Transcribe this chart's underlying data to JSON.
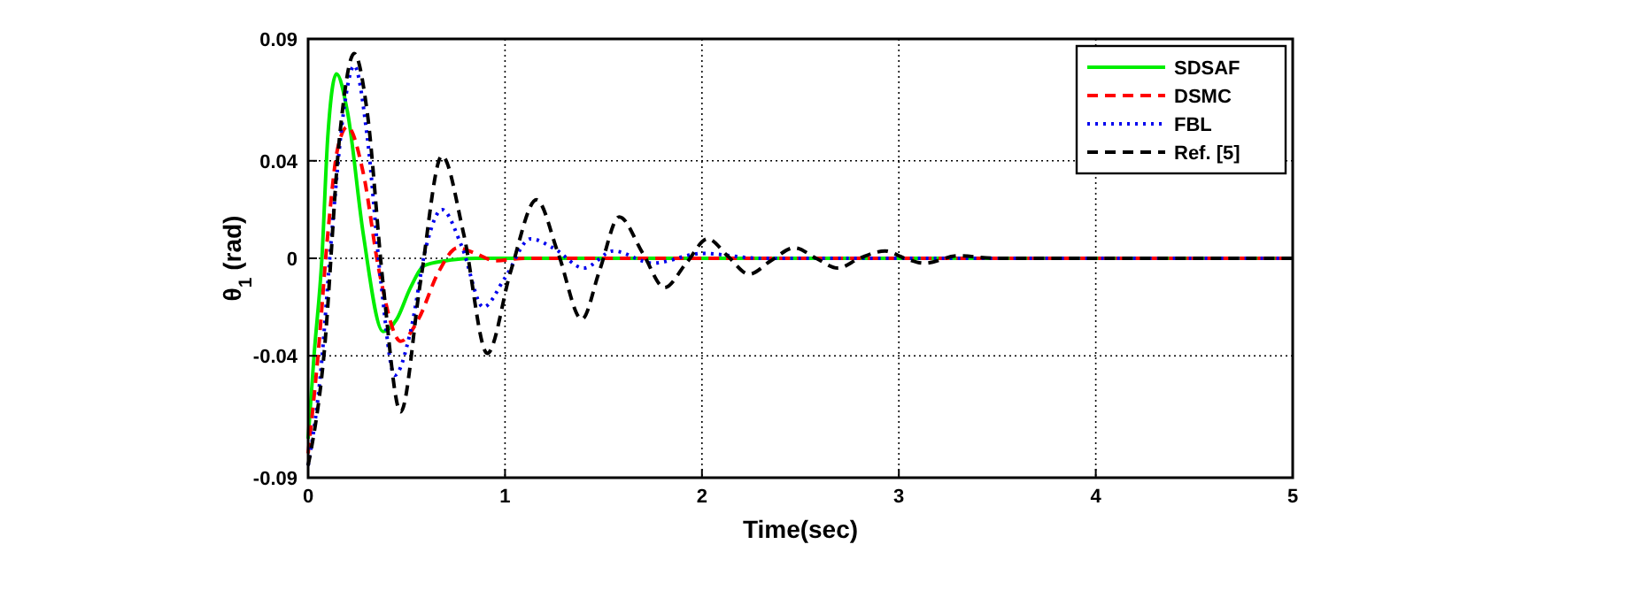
{
  "chart_data": {
    "type": "line",
    "xlabel": "Time(sec)",
    "ylabel": "θ$_{1}$ (rad)",
    "xlim": [
      0,
      5
    ],
    "ylim": [
      -0.09,
      0.09
    ],
    "xticks": [
      0,
      1,
      2,
      3,
      4,
      5
    ],
    "yticks": [
      -0.09,
      -0.04,
      0,
      0.04,
      0.09
    ],
    "grid": true,
    "legend": "top right",
    "series": [
      {
        "name": "SDSAF",
        "color": "#00ee00",
        "line_style": "solid",
        "x": [
          0,
          0.03,
          0.07,
          0.1,
          0.144,
          0.2,
          0.28,
          0.38,
          0.45,
          0.52,
          0.59,
          0.7,
          0.85,
          1,
          1.5,
          2,
          3,
          4,
          5
        ],
        "values": [
          -0.074,
          -0.04,
          0,
          0.05,
          0.0757,
          0.06,
          0.01,
          -0.03,
          -0.025,
          -0.012,
          -0.003,
          -0.001,
          0,
          0,
          0,
          0,
          0,
          0,
          0
        ]
      },
      {
        "name": "DSMC",
        "color": "#ff0000",
        "line_style": "dashed",
        "x": [
          0,
          0.05,
          0.1,
          0.15,
          0.2,
          0.28,
          0.36,
          0.47,
          0.56,
          0.66,
          0.76,
          0.85,
          0.95,
          1.1,
          1.5,
          2,
          3,
          4,
          5
        ],
        "values": [
          -0.08,
          -0.04,
          0.01,
          0.045,
          0.054,
          0.035,
          -0.005,
          -0.034,
          -0.025,
          -0.006,
          0.0043,
          0.002,
          -0.001,
          0,
          0,
          0,
          0,
          0,
          0
        ]
      },
      {
        "name": "FBL",
        "color": "#0000ee",
        "line_style": "dotted",
        "x": [
          0,
          0.06,
          0.12,
          0.18,
          0.234,
          0.3,
          0.37,
          0.44,
          0.52,
          0.6,
          0.68,
          0.78,
          0.89,
          1.0,
          1.13,
          1.25,
          1.4,
          1.55,
          1.75,
          2,
          2.3,
          3,
          4,
          5
        ],
        "values": [
          -0.085,
          -0.05,
          0.01,
          0.06,
          0.079,
          0.05,
          -0.01,
          -0.048,
          -0.03,
          0.005,
          0.02,
          0.005,
          -0.02,
          -0.008,
          0.008,
          0.004,
          -0.004,
          0.003,
          -0.002,
          0.002,
          0,
          0,
          0,
          0
        ]
      },
      {
        "name": "Ref. [5]",
        "color": "#000000",
        "line_style": "dashed",
        "x": [
          0,
          0.08,
          0.16,
          0.234,
          0.3,
          0.38,
          0.47,
          0.57,
          0.68,
          0.79,
          0.91,
          1.03,
          1.16,
          1.27,
          1.39,
          1.48,
          1.58,
          1.7,
          1.81,
          1.92,
          2.03,
          2.13,
          2.24,
          2.35,
          2.47,
          2.58,
          2.69,
          2.8,
          2.93,
          3.03,
          3.13,
          3.3,
          3.5,
          4,
          5
        ],
        "values": [
          -0.085,
          -0.04,
          0.05,
          0.084,
          0.06,
          -0.01,
          -0.063,
          -0.01,
          0.042,
          0.01,
          -0.039,
          -0.005,
          0.024,
          0.002,
          -0.025,
          -0.005,
          0.017,
          0.002,
          -0.012,
          -0.002,
          0.008,
          0.001,
          -0.0065,
          -0.001,
          0.0043,
          0,
          -0.004,
          0,
          0.003,
          0,
          -0.002,
          0.001,
          0,
          0,
          0
        ]
      }
    ]
  }
}
